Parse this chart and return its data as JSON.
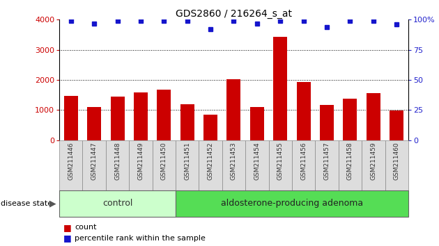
{
  "title": "GDS2860 / 216264_s_at",
  "samples": [
    "GSM211446",
    "GSM211447",
    "GSM211448",
    "GSM211449",
    "GSM211450",
    "GSM211451",
    "GSM211452",
    "GSM211453",
    "GSM211454",
    "GSM211455",
    "GSM211456",
    "GSM211457",
    "GSM211458",
    "GSM211459",
    "GSM211460"
  ],
  "counts": [
    1480,
    1100,
    1450,
    1580,
    1680,
    1200,
    850,
    2020,
    1100,
    3420,
    1930,
    1160,
    1380,
    1570,
    990
  ],
  "percentiles": [
    99,
    97,
    99,
    99,
    99,
    99,
    92,
    99,
    97,
    99,
    99,
    94,
    99,
    99,
    96
  ],
  "bar_color": "#cc0000",
  "dot_color": "#1515cc",
  "ylim_left": [
    0,
    4000
  ],
  "ylim_right": [
    0,
    100
  ],
  "yticks_left": [
    0,
    1000,
    2000,
    3000,
    4000
  ],
  "yticks_right": [
    0,
    25,
    50,
    75,
    100
  ],
  "grid_values": [
    1000,
    2000,
    3000
  ],
  "n_control": 5,
  "n_adenoma": 10,
  "control_label": "control",
  "adenoma_label": "aldosterone-producing adenoma",
  "disease_state_label": "disease state",
  "legend_count": "count",
  "legend_percentile": "percentile rank within the sample",
  "control_color": "#ccffcc",
  "adenoma_color": "#55dd55",
  "left_axis_color": "#cc0000",
  "right_axis_color": "#2222cc"
}
